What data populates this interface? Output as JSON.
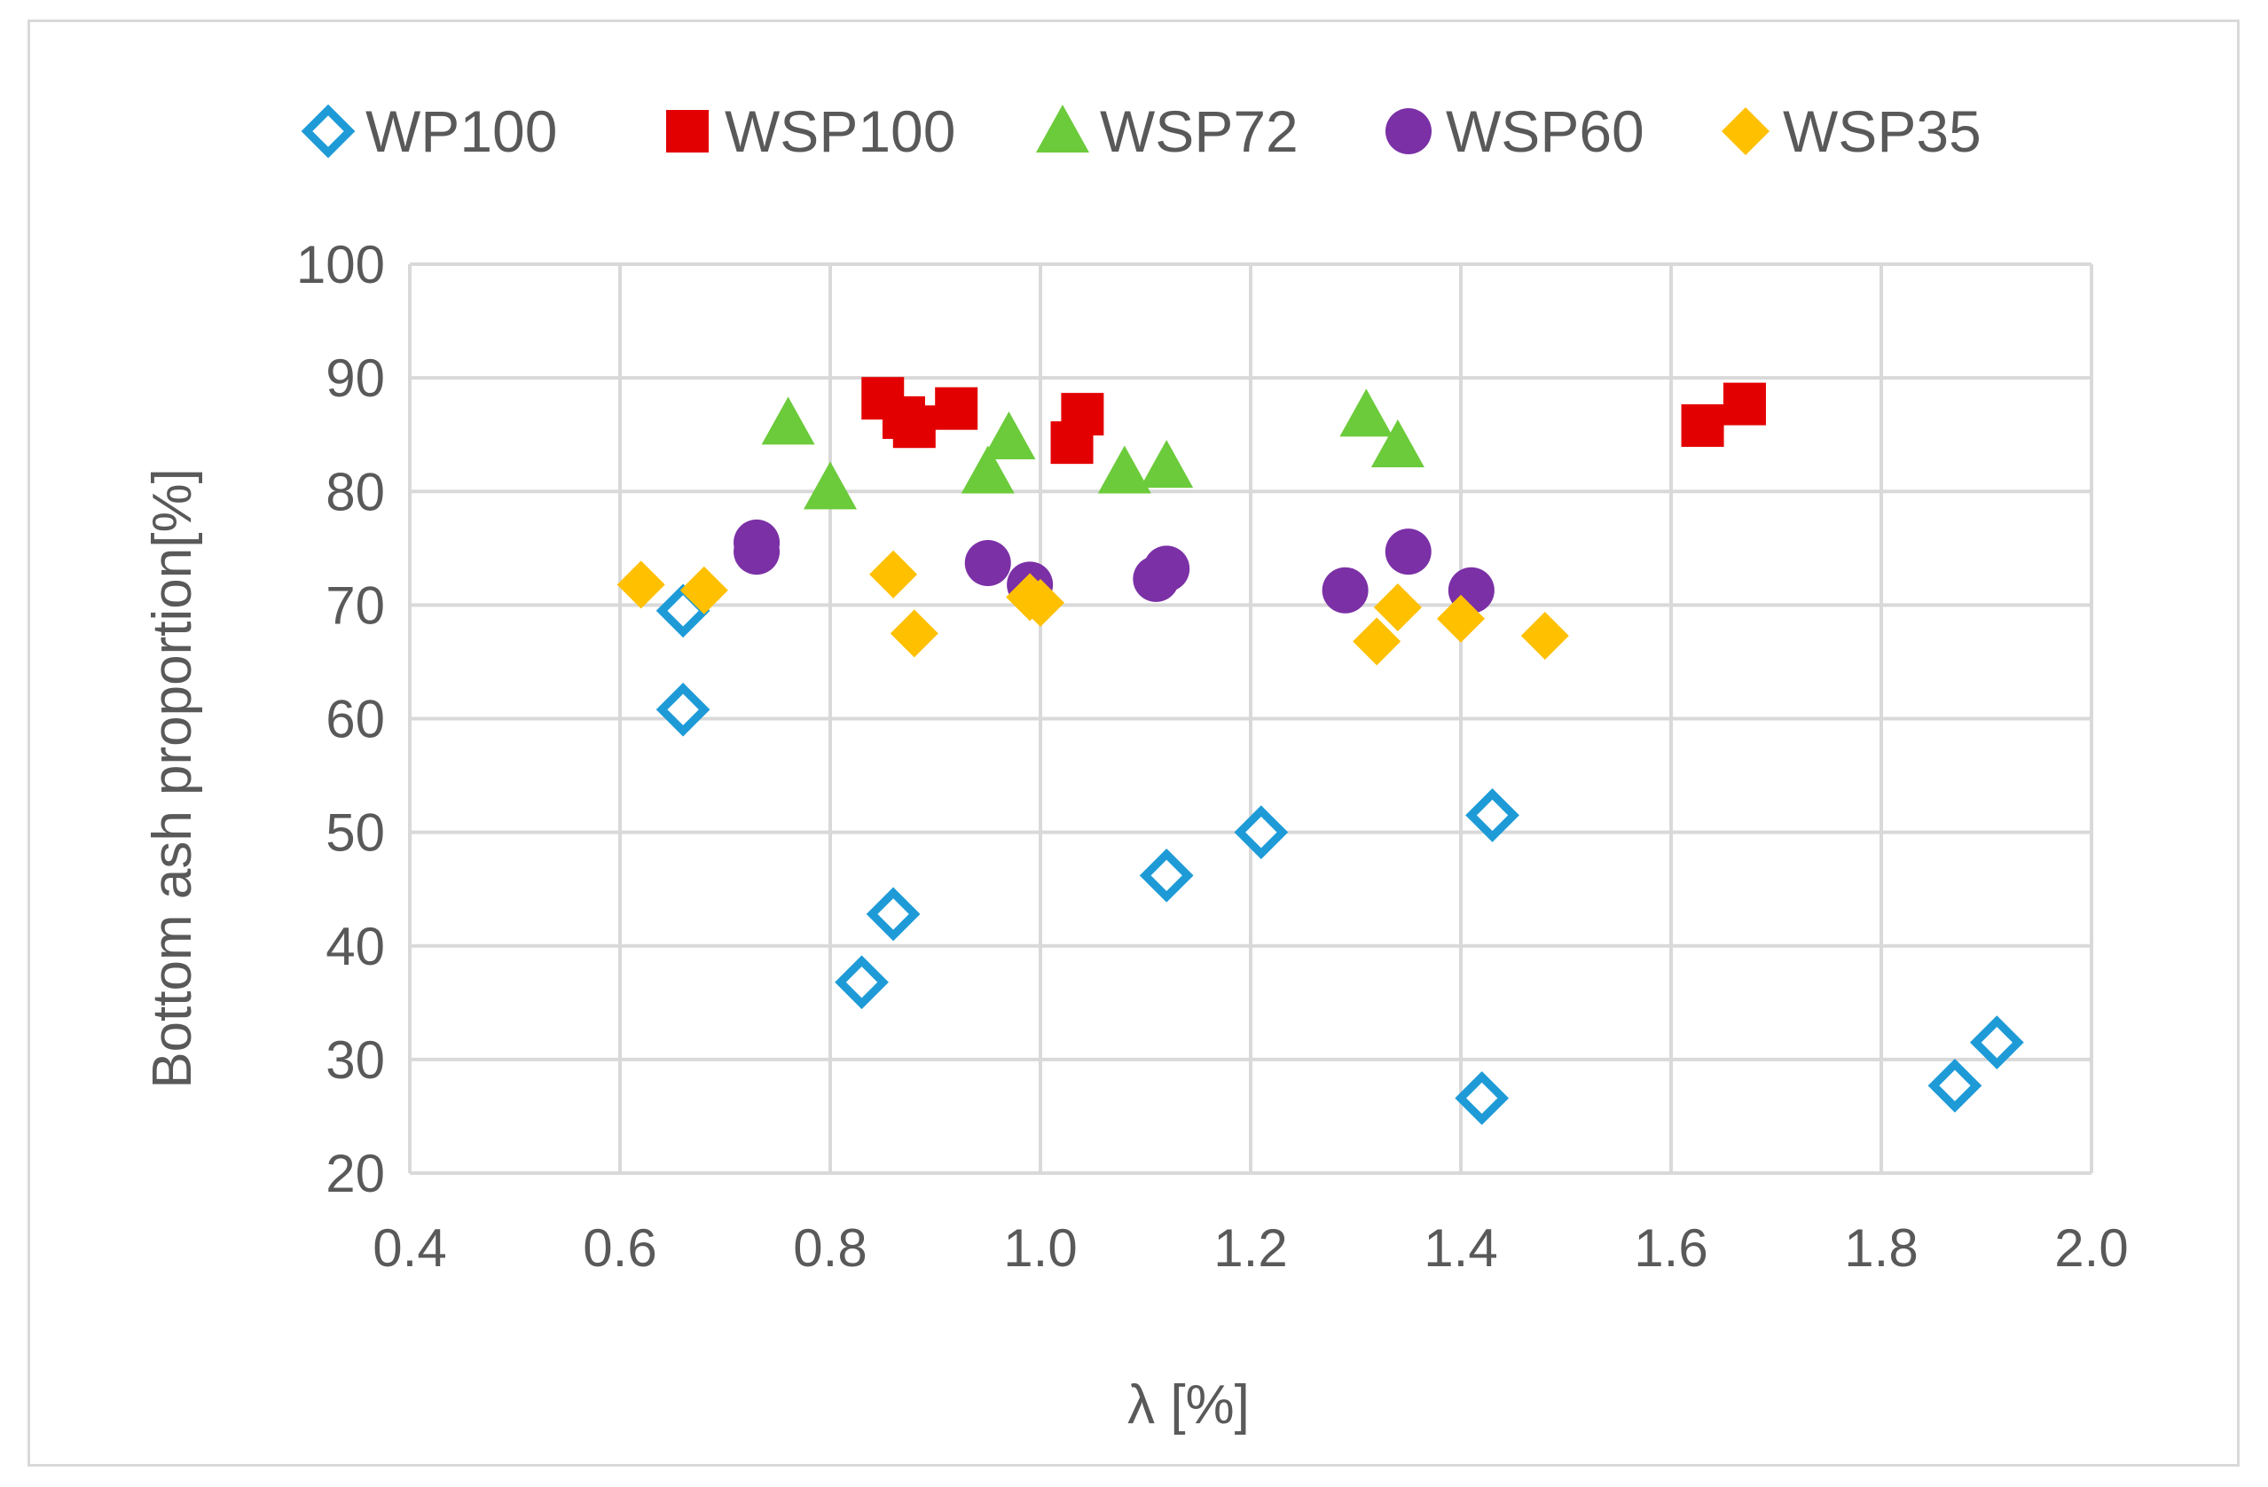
{
  "chart_data": {
    "type": "scatter",
    "title": "",
    "xlabel": "λ [%]",
    "ylabel": "Bottom ash proportion[%]",
    "xlim": [
      0.4,
      2.0
    ],
    "ylim": [
      20,
      100
    ],
    "xticks": [
      "0.4",
      "0.6",
      "0.8",
      "1.0",
      "1.2",
      "1.4",
      "1.6",
      "1.8",
      "2.0"
    ],
    "yticks": [
      "20",
      "30",
      "40",
      "50",
      "60",
      "70",
      "80",
      "90",
      "100"
    ],
    "grid": true,
    "legend_position": "top",
    "series": [
      {
        "name": "WP100",
        "marker": "diamond-open",
        "color": "#1E9BD7",
        "points": [
          [
            0.66,
            69.5
          ],
          [
            0.66,
            60.8
          ],
          [
            0.83,
            36.8
          ],
          [
            0.86,
            42.8
          ],
          [
            1.12,
            46.2
          ],
          [
            1.21,
            50.0
          ],
          [
            1.43,
            51.5
          ],
          [
            1.42,
            26.6
          ],
          [
            1.87,
            27.7
          ],
          [
            1.91,
            31.5
          ]
        ]
      },
      {
        "name": "WSP100",
        "marker": "square",
        "color": "#E30000",
        "points": [
          [
            0.85,
            88.2
          ],
          [
            0.87,
            86.5
          ],
          [
            0.88,
            85.7
          ],
          [
            0.92,
            87.3
          ],
          [
            1.03,
            84.3
          ],
          [
            1.04,
            86.8
          ],
          [
            1.63,
            85.8
          ],
          [
            1.67,
            87.7
          ]
        ]
      },
      {
        "name": "WSP72",
        "marker": "triangle",
        "color": "#6CCB3B",
        "points": [
          [
            0.76,
            86.0
          ],
          [
            0.8,
            80.3
          ],
          [
            0.95,
            81.7
          ],
          [
            0.97,
            84.7
          ],
          [
            1.08,
            81.7
          ],
          [
            1.12,
            82.2
          ],
          [
            1.31,
            86.7
          ],
          [
            1.34,
            84.0
          ]
        ]
      },
      {
        "name": "WSP60",
        "marker": "circle",
        "color": "#7B30A6",
        "points": [
          [
            0.73,
            75.5
          ],
          [
            0.73,
            74.7
          ],
          [
            0.95,
            73.7
          ],
          [
            0.99,
            71.8
          ],
          [
            1.11,
            72.3
          ],
          [
            1.12,
            73.2
          ],
          [
            1.29,
            71.3
          ],
          [
            1.35,
            74.7
          ],
          [
            1.41,
            71.3
          ]
        ]
      },
      {
        "name": "WSP35",
        "marker": "diamond",
        "color": "#FFC000",
        "points": [
          [
            0.62,
            71.8
          ],
          [
            0.68,
            71.3
          ],
          [
            0.86,
            72.7
          ],
          [
            0.88,
            67.5
          ],
          [
            0.99,
            70.7
          ],
          [
            1.0,
            70.2
          ],
          [
            1.32,
            66.8
          ],
          [
            1.34,
            69.8
          ],
          [
            1.4,
            68.8
          ],
          [
            1.48,
            67.3
          ]
        ]
      }
    ]
  }
}
